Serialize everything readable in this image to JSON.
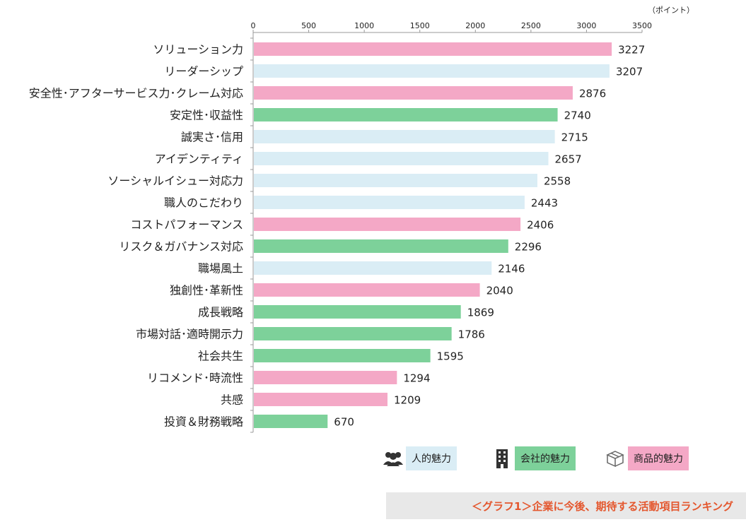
{
  "unit_label": "（ポイント）",
  "caption": "＜グラフ1＞企業に今後、期待する活動項目ランキング",
  "legend": [
    {
      "label": "人的魅力",
      "color": "#daedf5",
      "icon": "people-icon"
    },
    {
      "label": "会社的魅力",
      "color": "#7dd19a",
      "icon": "building-icon"
    },
    {
      "label": "商品的魅力",
      "color": "#f4a8c6",
      "icon": "product-box-icon"
    }
  ],
  "chart_data": {
    "type": "bar",
    "orientation": "horizontal",
    "xlim": [
      0,
      3500
    ],
    "ticks": [
      0,
      500,
      1000,
      1500,
      2000,
      2500,
      3000,
      3500
    ],
    "grid": false,
    "legend_position": "bottom-right",
    "categories": [
      "ソリューション力",
      "リーダーシップ",
      "安全性･アフターサービス力･クレーム対応",
      "安定性･収益性",
      "誠実さ･信用",
      "アイデンティティ",
      "ソーシャルイシュー対応力",
      "職人のこだわり",
      "コストパフォーマンス",
      "リスク＆ガバナンス対応",
      "職場風土",
      "独創性･革新性",
      "成長戦略",
      "市場対話･適時開示力",
      "社会共生",
      "リコメンド･時流性",
      "共感",
      "投資＆財務戦略"
    ],
    "values": [
      3227,
      3207,
      2876,
      2740,
      2715,
      2657,
      2558,
      2443,
      2406,
      2296,
      2146,
      2040,
      1869,
      1786,
      1595,
      1294,
      1209,
      670
    ],
    "groups": [
      "商品的魅力",
      "人的魅力",
      "商品的魅力",
      "会社的魅力",
      "人的魅力",
      "人的魅力",
      "人的魅力",
      "人的魅力",
      "商品的魅力",
      "会社的魅力",
      "人的魅力",
      "商品的魅力",
      "会社的魅力",
      "会社的魅力",
      "会社的魅力",
      "商品的魅力",
      "商品的魅力",
      "会社的魅力"
    ]
  }
}
